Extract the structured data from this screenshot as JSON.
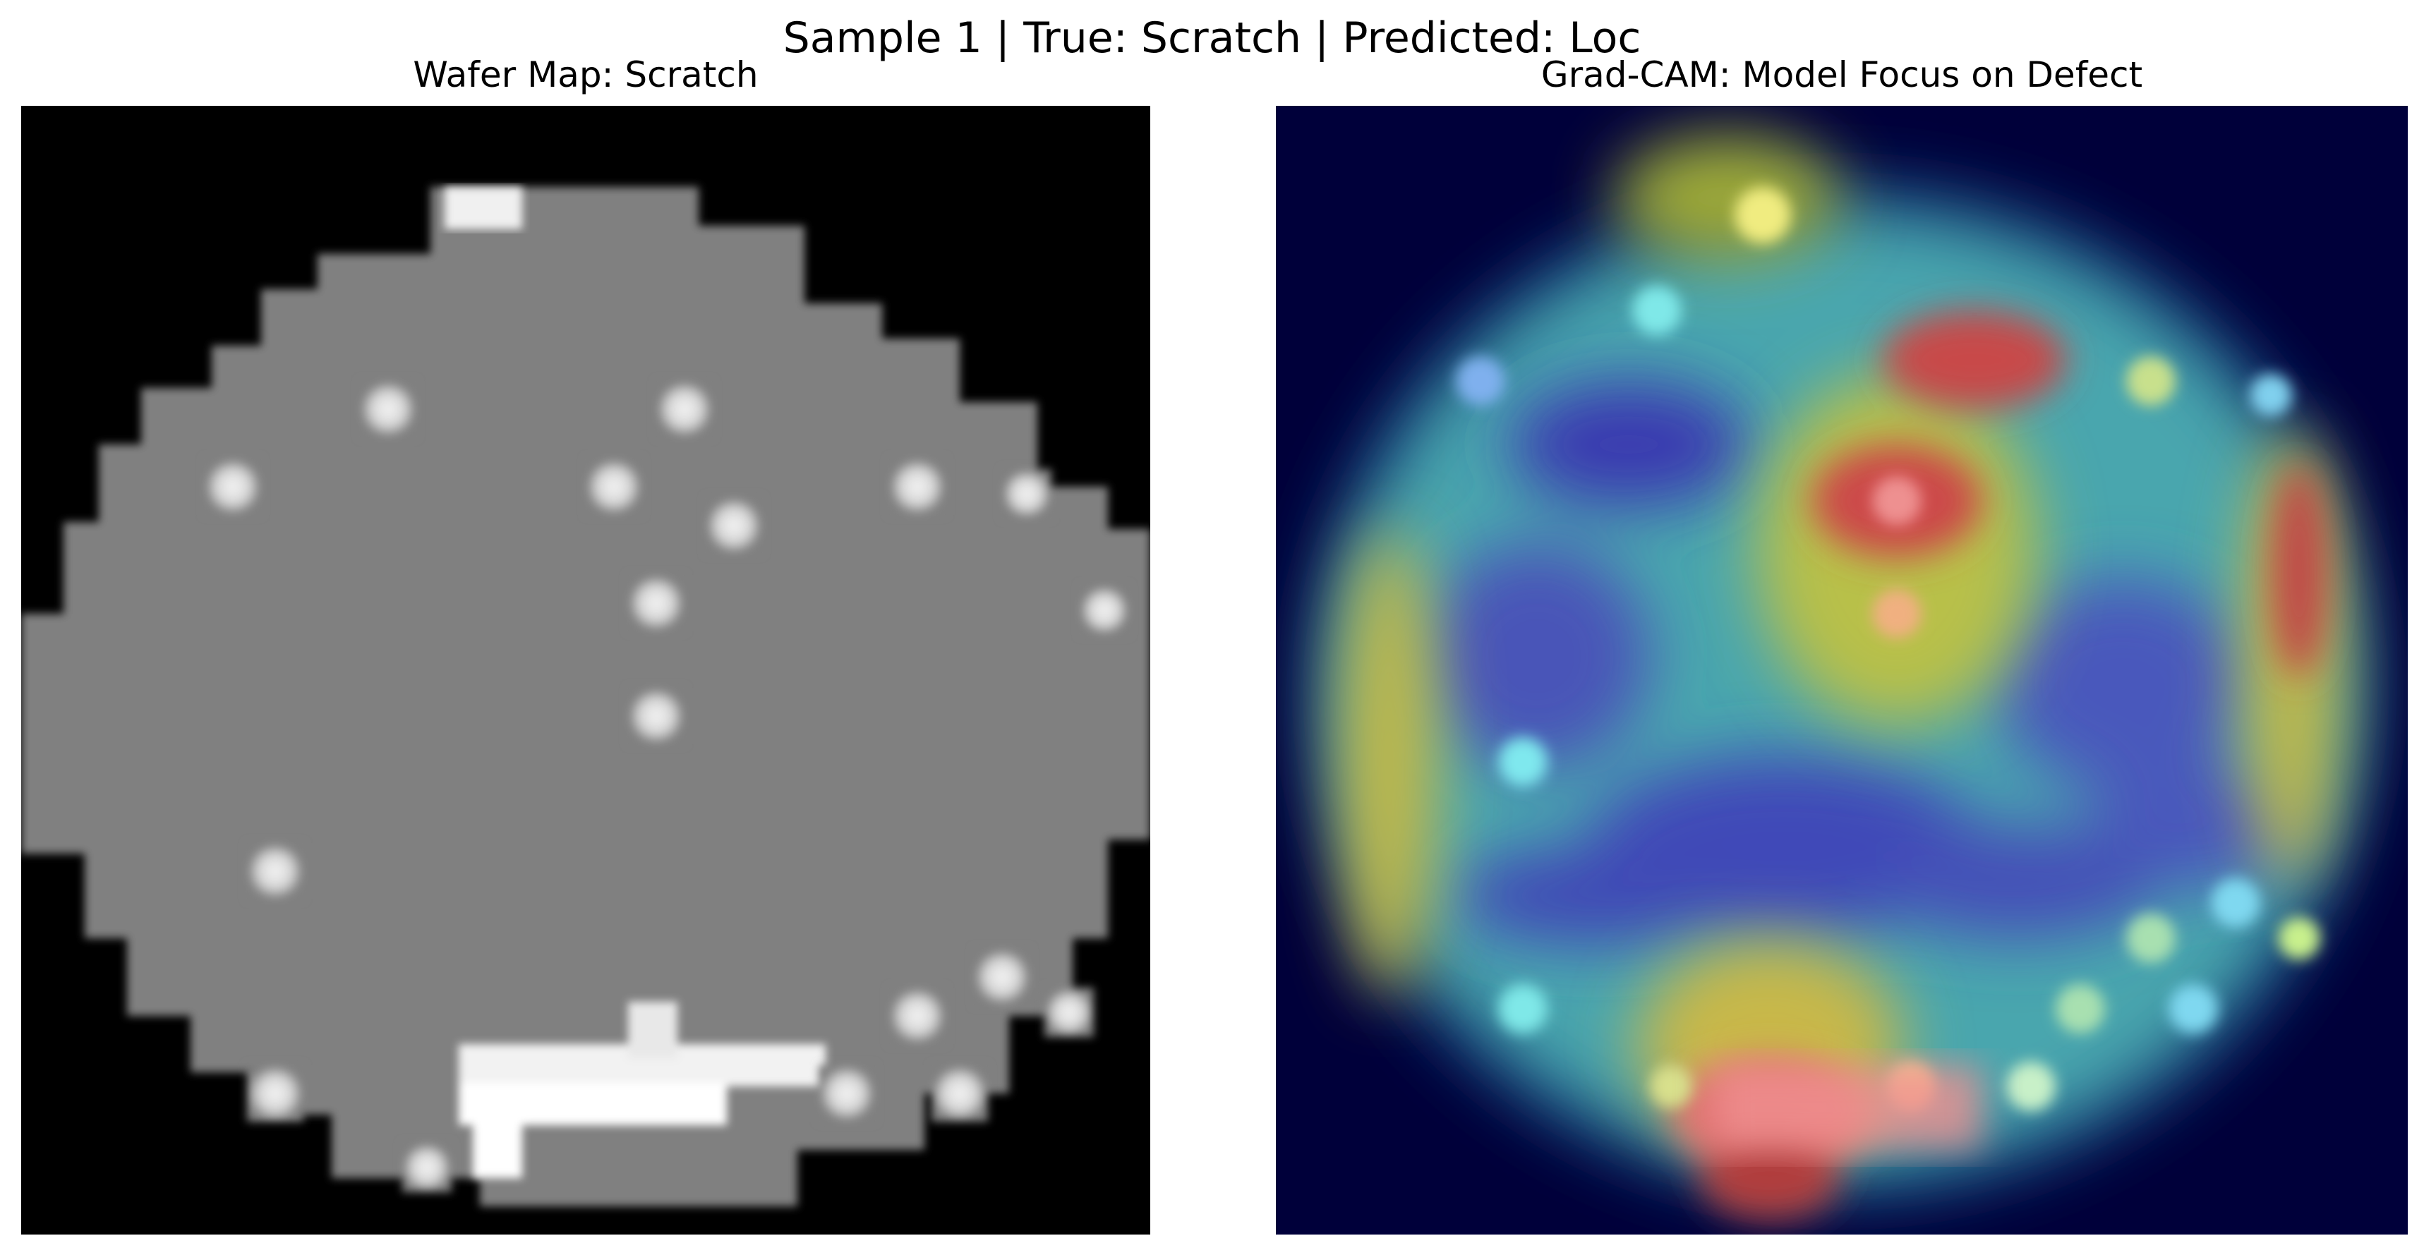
{
  "figure": {
    "suptitle": "Sample 1 | True: Scratch | Predicted: Loc"
  },
  "panels": {
    "wafer_map": {
      "title": "Wafer Map: Scratch",
      "colormap": "gray",
      "colors": {
        "background": "#000000",
        "wafer": "#808080",
        "defect": "#ffffff"
      }
    },
    "gradcam": {
      "title": "Grad-CAM: Model Focus on Defect",
      "colormap": "jet",
      "colors": {
        "outside": "#00003a",
        "low": "#3a3aa6",
        "mid": "#5ab4a8",
        "high": "#c84040"
      }
    }
  }
}
